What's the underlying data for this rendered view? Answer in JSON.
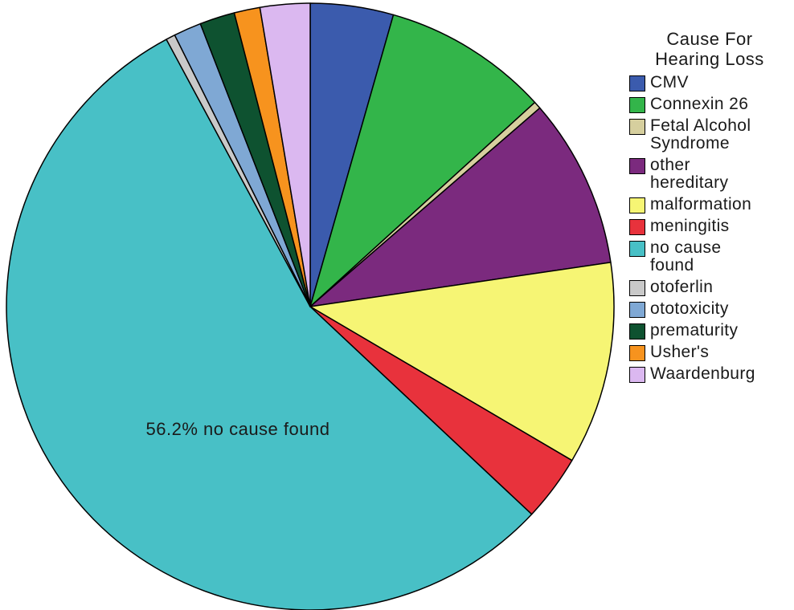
{
  "chart_data": {
    "type": "pie",
    "title": "",
    "legend_title": "Cause For\nHearing Loss",
    "legend_position": "right",
    "start": "top, clockwise",
    "slices": [
      {
        "label": "CMV",
        "value": 4.5,
        "color": "#3b5bad"
      },
      {
        "label": "Connexin 26",
        "value": 9.0,
        "color": "#33b54a"
      },
      {
        "label": "Fetal Alcohol Syndrome",
        "value": 0.4,
        "color": "#d6cf9e"
      },
      {
        "label": "other hereditary",
        "value": 9.2,
        "color": "#7b2a7e"
      },
      {
        "label": "malformation",
        "value": 11.0,
        "color": "#f6f574"
      },
      {
        "label": "meningitis",
        "value": 3.6,
        "color": "#e8323c"
      },
      {
        "label": "no cause found",
        "value": 56.2,
        "color": "#48c0c6"
      },
      {
        "label": "otoferlin",
        "value": 0.5,
        "color": "#c9c9c9"
      },
      {
        "label": "ototoxicity",
        "value": 1.5,
        "color": "#7fa8d4"
      },
      {
        "label": "prematurity",
        "value": 1.9,
        "color": "#0e5230"
      },
      {
        "label": "Usher's",
        "value": 1.4,
        "color": "#f7931e"
      },
      {
        "label": "Waardenburg",
        "value": 2.7,
        "color": "#dbb8f0"
      }
    ],
    "legend_labels": [
      "CMV",
      "Connexin 26",
      "Fetal Alcohol\nSyndrome",
      "other\nhereditary",
      "malformation",
      "meningitis",
      "no cause\nfound",
      "otoferlin",
      "ototoxicity",
      "prematurity",
      "Usher's",
      "Waardenburg"
    ],
    "annotations": [
      {
        "text": "56.2% no cause found",
        "slice": "no cause found"
      }
    ]
  }
}
